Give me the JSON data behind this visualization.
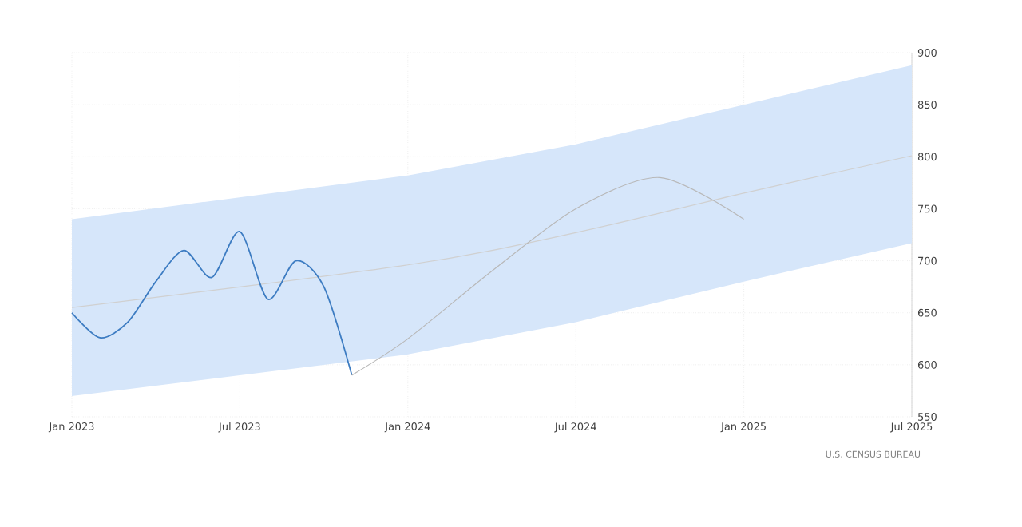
{
  "chart_data": {
    "type": "line",
    "xlim": [
      "2023-01",
      "2025-07"
    ],
    "xticks": [
      {
        "value": "2023-01",
        "label": "Jan 2023"
      },
      {
        "value": "2023-07",
        "label": "Jul 2023"
      },
      {
        "value": "2024-01",
        "label": "Jan 2024"
      },
      {
        "value": "2024-07",
        "label": "Jul 2024"
      },
      {
        "value": "2025-01",
        "label": "Jan 2025"
      },
      {
        "value": "2025-07",
        "label": "Jul 2025"
      }
    ],
    "ylim": [
      550,
      900
    ],
    "yticks": [
      550,
      600,
      650,
      700,
      750,
      800,
      850,
      900
    ],
    "grid": true,
    "series": [
      {
        "color": "#d0d0d0",
        "x": [
          "2023-01",
          "2024-01",
          "2024-07",
          "2025-01",
          "2025-07"
        ],
        "values": [
          655,
          696,
          727,
          765,
          801
        ],
        "lower": [
          570,
          610,
          641,
          680,
          717
        ],
        "upper": [
          740,
          782,
          812,
          850,
          888
        ]
      },
      {
        "color": "#3d7cc2",
        "x": [
          "2023-01",
          "2023-02",
          "2023-03",
          "2023-04",
          "2023-05",
          "2023-06",
          "2023-07",
          "2023-08",
          "2023-09",
          "2023-10",
          "2023-11"
        ],
        "values": [
          650,
          626,
          641,
          680,
          710,
          684,
          728,
          663,
          700,
          675,
          590
        ]
      },
      {
        "color": "#b8b8b8",
        "x": [
          "2023-11",
          "2024-01",
          "2024-04",
          "2024-07",
          "2024-10",
          "2025-01"
        ],
        "values": [
          590,
          625,
          690,
          750,
          780,
          740
        ]
      }
    ],
    "annotations": [
      "U.S. CENSUS BUREAU"
    ]
  }
}
